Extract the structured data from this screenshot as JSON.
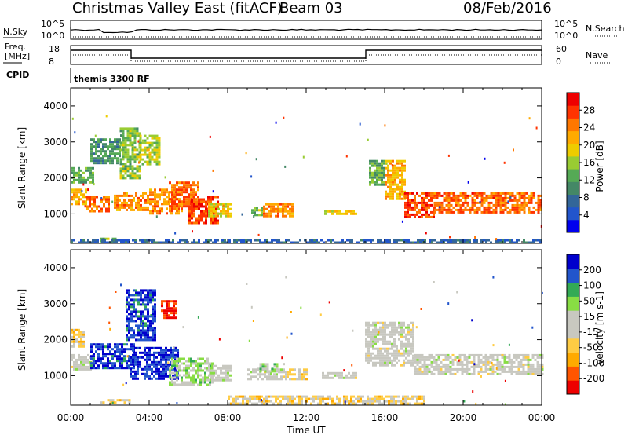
{
  "header": {
    "station": "Christmas Valley East (fitACF)",
    "beam": "Beam 03",
    "date": "08/Feb/2016"
  },
  "top": {
    "nsky_label": "N.Sky",
    "nsearch_label": "N.Search",
    "freq_label_1": "Freq.",
    "freq_label_2": "[MHz]",
    "nave_label": "Nave",
    "cpid_label": "CPID",
    "cpid_value": "themis 3300 RF",
    "noise_ticks_left": [
      "10^5",
      "10^0"
    ],
    "noise_ticks_right": [
      "10^5",
      "10^0"
    ],
    "freq_ticks": [
      "18",
      "8"
    ],
    "nave_ticks": [
      "60",
      "0"
    ]
  },
  "x_ticks": [
    "00:00",
    "04:00",
    "08:00",
    "12:00",
    "16:00",
    "20:00",
    "00:00"
  ],
  "x_label": "Time UT",
  "chart_data": [
    {
      "type": "heatmap",
      "name": "power",
      "ylabel": "Slant Range [km]",
      "yticks": [
        "4000",
        "3000",
        "2000",
        "1000"
      ],
      "ylim": [
        180,
        4500
      ],
      "xlim": [
        0,
        24
      ],
      "colorbar": {
        "label": "Power [dB]",
        "ticks": [
          "28",
          "24",
          "20",
          "16",
          "12",
          "8",
          "4"
        ],
        "range": [
          0,
          30
        ],
        "colors": [
          "#0000ee",
          "#2255cc",
          "#336699",
          "#448866",
          "#55aa55",
          "#99cc33",
          "#eecc00",
          "#ffaa00",
          "#ff7700",
          "#ff3300",
          "#ee0000"
        ]
      },
      "regions": [
        {
          "t0": 0.0,
          "t1": 0.8,
          "r0": 1300,
          "r1": 1700,
          "level": 20
        },
        {
          "t0": 0.0,
          "t1": 1.2,
          "r0": 1900,
          "r1": 2300,
          "level": 12
        },
        {
          "t0": 0.8,
          "t1": 2.0,
          "r0": 1050,
          "r1": 1500,
          "level": 24
        },
        {
          "t0": 1.0,
          "t1": 2.5,
          "r0": 2400,
          "r1": 3100,
          "level": 10
        },
        {
          "t0": 2.2,
          "t1": 4.0,
          "r0": 1100,
          "r1": 1600,
          "level": 22
        },
        {
          "t0": 2.5,
          "t1": 3.5,
          "r0": 2000,
          "r1": 3400,
          "level": 14
        },
        {
          "t0": 3.5,
          "t1": 4.5,
          "r0": 2400,
          "r1": 3200,
          "level": 16
        },
        {
          "t0": 4.0,
          "t1": 5.5,
          "r0": 1000,
          "r1": 1700,
          "level": 22
        },
        {
          "t0": 5.0,
          "t1": 6.5,
          "r0": 1100,
          "r1": 1900,
          "level": 24
        },
        {
          "t0": 6.0,
          "t1": 7.5,
          "r0": 750,
          "r1": 1500,
          "level": 26
        },
        {
          "t0": 7.0,
          "t1": 8.2,
          "r0": 950,
          "r1": 1300,
          "level": 18
        },
        {
          "t0": 9.2,
          "t1": 9.8,
          "r0": 1000,
          "r1": 1200,
          "level": 14
        },
        {
          "t0": 9.8,
          "t1": 11.3,
          "r0": 950,
          "r1": 1300,
          "level": 22
        },
        {
          "t0": 12.8,
          "t1": 14.6,
          "r0": 1000,
          "r1": 1100,
          "level": 18
        },
        {
          "t0": 15.2,
          "t1": 16.0,
          "r0": 1800,
          "r1": 2500,
          "level": 12
        },
        {
          "t0": 16.0,
          "t1": 17.0,
          "r0": 1400,
          "r1": 2500,
          "level": 20
        },
        {
          "t0": 17.0,
          "t1": 18.5,
          "r0": 900,
          "r1": 1600,
          "level": 26
        },
        {
          "t0": 18.5,
          "t1": 24.0,
          "r0": 1050,
          "r1": 1600,
          "level": 24
        },
        {
          "t0": 1.5,
          "t1": 2.3,
          "r0": 250,
          "r1": 340,
          "level": 14
        },
        {
          "t0": 0.0,
          "t1": 24.0,
          "r0": 180,
          "r1": 300,
          "level": 6
        }
      ]
    },
    {
      "type": "heatmap",
      "name": "velocity",
      "ylabel": "Slant Range [km]",
      "yticks": [
        "4000",
        "3000",
        "2000",
        "1000"
      ],
      "ylim": [
        180,
        4500
      ],
      "xlim": [
        0,
        24
      ],
      "colorbar": {
        "label": "Velocity [m s-1]",
        "ticks": [
          "200",
          "100",
          "50",
          "15",
          "-15",
          "-50",
          "-100",
          "-200"
        ],
        "range": [
          -250,
          250
        ],
        "colors": [
          "#ee0000",
          "#ff5500",
          "#ffaa00",
          "#ffcc44",
          "#c8c8c0",
          "#c8c8c0",
          "#88dd44",
          "#33aa55",
          "#2255cc",
          "#0000cc"
        ]
      },
      "regions": [
        {
          "t0": 0.0,
          "t1": 1.2,
          "r0": 1150,
          "r1": 1600,
          "level": 0
        },
        {
          "t0": 0.0,
          "t1": 0.7,
          "r0": 1800,
          "r1": 2300,
          "level": -60
        },
        {
          "t0": 1.0,
          "t1": 3.2,
          "r0": 1200,
          "r1": 1900,
          "level": 200
        },
        {
          "t0": 2.8,
          "t1": 4.3,
          "r0": 2000,
          "r1": 3400,
          "level": 190
        },
        {
          "t0": 3.0,
          "t1": 5.5,
          "r0": 900,
          "r1": 1800,
          "level": 210
        },
        {
          "t0": 4.6,
          "t1": 5.4,
          "r0": 2600,
          "r1": 3100,
          "level": -220
        },
        {
          "t0": 5.0,
          "t1": 7.2,
          "r0": 750,
          "r1": 1500,
          "level": 60
        },
        {
          "t0": 7.0,
          "t1": 8.2,
          "r0": 900,
          "r1": 1300,
          "level": 10
        },
        {
          "t0": 9.0,
          "t1": 11.0,
          "r0": 900,
          "r1": 1200,
          "level": 0
        },
        {
          "t0": 9.5,
          "t1": 10.5,
          "r0": 1150,
          "r1": 1350,
          "level": 60
        },
        {
          "t0": 11.0,
          "t1": 12.0,
          "r0": 900,
          "r1": 1200,
          "level": -60
        },
        {
          "t0": 12.8,
          "t1": 14.6,
          "r0": 950,
          "r1": 1100,
          "level": 0
        },
        {
          "t0": 15.0,
          "t1": 17.5,
          "r0": 1300,
          "r1": 2500,
          "level": 0
        },
        {
          "t0": 17.5,
          "t1": 24.0,
          "r0": 1050,
          "r1": 1600,
          "level": 0
        },
        {
          "t0": 8.0,
          "t1": 18.0,
          "r0": 200,
          "r1": 450,
          "level": -60
        },
        {
          "t0": 1.5,
          "t1": 3.0,
          "r0": 250,
          "r1": 350,
          "level": -60
        }
      ]
    }
  ]
}
